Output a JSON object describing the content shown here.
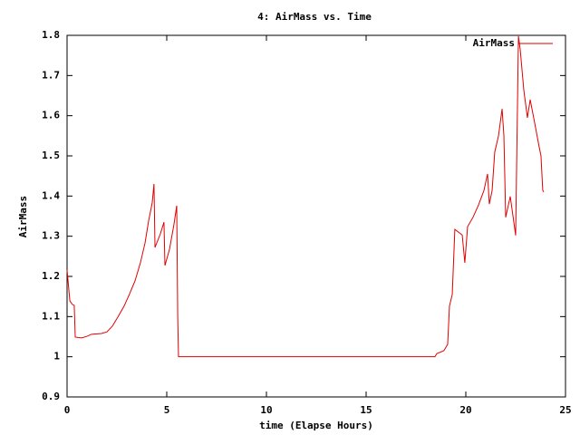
{
  "chart_data": {
    "type": "line",
    "title": "4: AirMass vs. Time",
    "x_label": "time (Elapse Hours)",
    "y_label": "AirMass",
    "xlim": [
      0,
      25
    ],
    "xticks": [
      0,
      5,
      10,
      15,
      20,
      25
    ],
    "ylim": [
      0.9,
      1.8
    ],
    "yticks": [
      0.9,
      1,
      1.1,
      1.2,
      1.3,
      1.4,
      1.5,
      1.6,
      1.7,
      1.8
    ],
    "legend": "top-right",
    "grid": false,
    "series": [
      {
        "name": "AirMass",
        "color": "#e00000",
        "x": [
          0,
          0.14,
          0.27,
          0.36,
          0.41,
          0.73,
          1.0,
          1.23,
          1.73,
          2.0,
          2.27,
          2.55,
          2.86,
          3.14,
          3.41,
          3.68,
          3.91,
          4.09,
          4.27,
          4.36,
          4.41,
          4.68,
          4.86,
          4.91,
          5.14,
          5.36,
          5.5,
          5.55,
          5.59,
          18.45,
          18.55,
          18.9,
          19.09,
          19.18,
          19.32,
          19.45,
          19.82,
          19.95,
          20.09,
          20.36,
          20.64,
          20.91,
          21.09,
          21.18,
          21.32,
          21.45,
          21.64,
          21.82,
          21.91,
          22.0,
          22.23,
          22.5,
          22.64,
          22.73,
          22.91,
          23.09,
          23.23,
          23.45,
          23.68,
          23.77,
          23.86,
          23.91
        ],
        "values": [
          1.216,
          1.139,
          1.13,
          1.128,
          1.049,
          1.047,
          1.051,
          1.056,
          1.058,
          1.062,
          1.076,
          1.099,
          1.126,
          1.157,
          1.189,
          1.234,
          1.283,
          1.338,
          1.383,
          1.43,
          1.272,
          1.306,
          1.335,
          1.227,
          1.268,
          1.329,
          1.376,
          1.099,
          1.0,
          1.0,
          1.008,
          1.015,
          1.031,
          1.126,
          1.155,
          1.317,
          1.303,
          1.234,
          1.324,
          1.347,
          1.378,
          1.414,
          1.455,
          1.38,
          1.414,
          1.509,
          1.55,
          1.617,
          1.55,
          1.347,
          1.399,
          1.302,
          1.798,
          1.764,
          1.663,
          1.595,
          1.64,
          1.583,
          1.522,
          1.5,
          1.414,
          1.41
        ]
      }
    ]
  }
}
